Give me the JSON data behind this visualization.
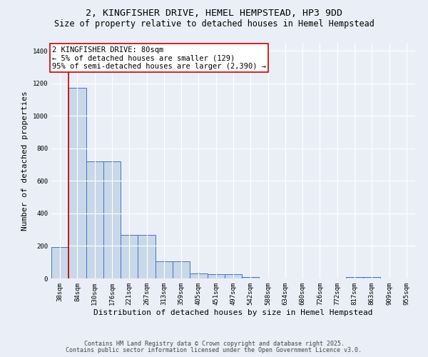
{
  "title": "2, KINGFISHER DRIVE, HEMEL HEMPSTEAD, HP3 9DD",
  "subtitle": "Size of property relative to detached houses in Hemel Hempstead",
  "xlabel": "Distribution of detached houses by size in Hemel Hempstead",
  "ylabel": "Number of detached properties",
  "categories": [
    "38sqm",
    "84sqm",
    "130sqm",
    "176sqm",
    "221sqm",
    "267sqm",
    "313sqm",
    "359sqm",
    "405sqm",
    "451sqm",
    "497sqm",
    "542sqm",
    "588sqm",
    "634sqm",
    "680sqm",
    "726sqm",
    "772sqm",
    "817sqm",
    "863sqm",
    "909sqm",
    "955sqm"
  ],
  "values": [
    195,
    1175,
    720,
    720,
    270,
    270,
    105,
    105,
    30,
    25,
    25,
    10,
    0,
    0,
    0,
    0,
    0,
    10,
    10,
    0,
    0
  ],
  "bar_color": "#c8d8e8",
  "bar_edge_color": "#4472c4",
  "annotation_text": "2 KINGFISHER DRIVE: 80sqm\n← 5% of detached houses are smaller (129)\n95% of semi-detached houses are larger (2,390) →",
  "annotation_box_color": "#ffffff",
  "annotation_box_edge": "#cc0000",
  "vline_x": 0.5,
  "vline_color": "#cc0000",
  "ylim": [
    0,
    1450
  ],
  "yticks": [
    0,
    200,
    400,
    600,
    800,
    1000,
    1200,
    1400
  ],
  "background_color": "#eaeff7",
  "grid_color": "#ffffff",
  "footer_line1": "Contains HM Land Registry data © Crown copyright and database right 2025.",
  "footer_line2": "Contains public sector information licensed under the Open Government Licence v3.0.",
  "title_fontsize": 9.5,
  "subtitle_fontsize": 8.5,
  "xlabel_fontsize": 8,
  "ylabel_fontsize": 8,
  "tick_fontsize": 6.5,
  "footer_fontsize": 6,
  "annotation_fontsize": 7.5
}
